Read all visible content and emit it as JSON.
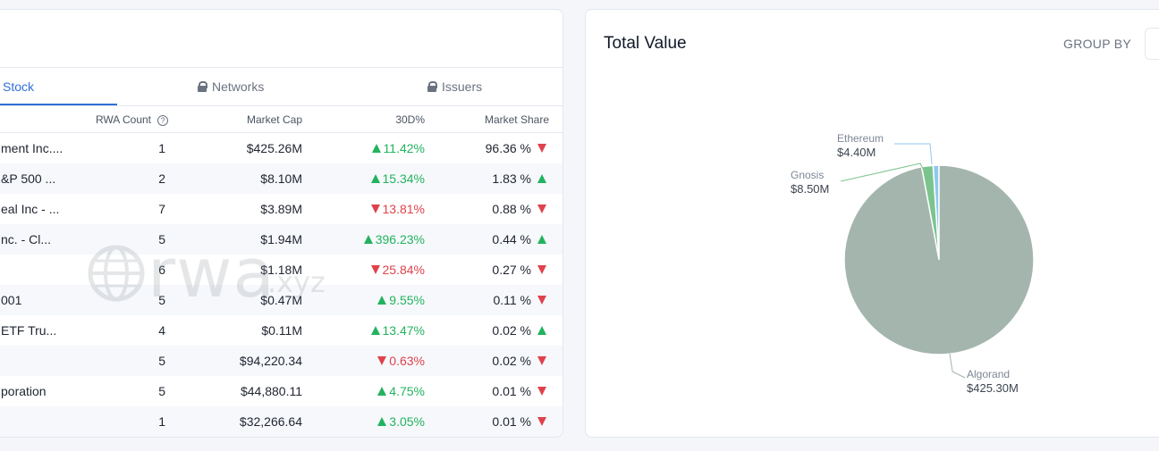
{
  "tabs": [
    {
      "label": "Stock"
    },
    {
      "label": "Networks"
    },
    {
      "label": "Issuers"
    }
  ],
  "table": {
    "headers": {
      "count": "RWA Count",
      "cap": "Market Cap",
      "change": "30D%",
      "share": "Market Share"
    },
    "rows": [
      {
        "name": "ment Inc....",
        "count": "1",
        "cap": "$425.26M",
        "change": "11.42%",
        "change_dir": "up",
        "share": "96.36 %",
        "share_dir": "down"
      },
      {
        "name": "&P 500 ...",
        "count": "2",
        "cap": "$8.10M",
        "change": "15.34%",
        "change_dir": "up",
        "share": "1.83 %",
        "share_dir": "up"
      },
      {
        "name": "eal Inc - ...",
        "count": "7",
        "cap": "$3.89M",
        "change": "13.81%",
        "change_dir": "down",
        "share": "0.88 %",
        "share_dir": "down"
      },
      {
        "name": "nc. - Cl...",
        "count": "5",
        "cap": "$1.94M",
        "change": "396.23%",
        "change_dir": "up",
        "share": "0.44 %",
        "share_dir": "up"
      },
      {
        "name": "",
        "count": "6",
        "cap": "$1.18M",
        "change": "25.84%",
        "change_dir": "down",
        "share": "0.27 %",
        "share_dir": "down"
      },
      {
        "name": "001",
        "count": "5",
        "cap": "$0.47M",
        "change": "9.55%",
        "change_dir": "up",
        "share": "0.11 %",
        "share_dir": "down"
      },
      {
        "name": " ETF Tru...",
        "count": "4",
        "cap": "$0.11M",
        "change": "13.47%",
        "change_dir": "up",
        "share": "0.02 %",
        "share_dir": "up"
      },
      {
        "name": "",
        "count": "5",
        "cap": "$94,220.34",
        "change": "0.63%",
        "change_dir": "down",
        "share": "0.02 %",
        "share_dir": "down"
      },
      {
        "name": "poration",
        "count": "5",
        "cap": "$44,880.11",
        "change": "4.75%",
        "change_dir": "up",
        "share": "0.01 %",
        "share_dir": "down"
      },
      {
        "name": "",
        "count": "1",
        "cap": "$32,266.64",
        "change": "3.05%",
        "change_dir": "up",
        "share": "0.01 %",
        "share_dir": "down"
      }
    ]
  },
  "watermark": {
    "main": "rwa",
    "suffix": ".xyz"
  },
  "panel": {
    "title": "Total Value",
    "group_by_label": "GROUP BY"
  },
  "chart_data": {
    "type": "pie",
    "slices": [
      {
        "name": "Algorand",
        "value": 425.3,
        "label": "$425.30M",
        "color": "#a4b5ae"
      },
      {
        "name": "Gnosis",
        "value": 8.5,
        "label": "$8.50M",
        "color": "#7cc48e"
      },
      {
        "name": "Ethereum",
        "value": 4.4,
        "label": "$4.40M",
        "color": "#8ec9ee"
      }
    ]
  },
  "colors": {
    "accent": "#2f6fd6",
    "up": "#22b35e",
    "down": "#e0424b"
  }
}
